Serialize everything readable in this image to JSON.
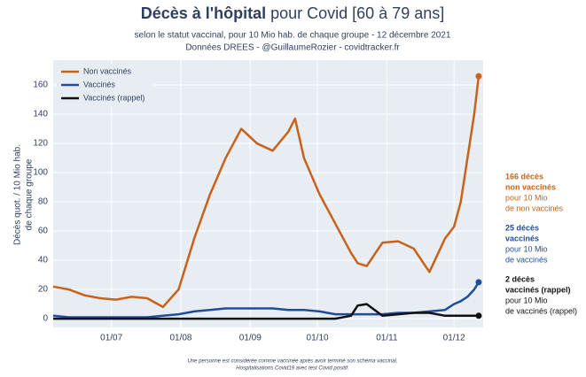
{
  "chart_data": {
    "type": "line",
    "title_bold": "Décès à l'hôpital",
    "title_rest": "pour Covid [60 à 79 ans]",
    "subtitle": [
      "selon le statut vaccinal, pour 10 Mio hab. de chaque groupe - 12 décembre 2021",
      "Données DREES - @GuillaumeRozier - covidtracker.fr"
    ],
    "y_label": [
      "Décès quot. / 10 Mio hab.",
      "de chaque groupe"
    ],
    "x": [
      "05/06",
      "12/06",
      "19/06",
      "26/06",
      "03/07",
      "10/07",
      "17/07",
      "24/07",
      "31/07",
      "07/08",
      "14/08",
      "21/08",
      "28/08",
      "04/09",
      "11/09",
      "18/09",
      "21/09",
      "25/09",
      "02/10",
      "09/10",
      "16/10",
      "19/10",
      "23/10",
      "30/10",
      "06/11",
      "13/11",
      "20/11",
      "27/11",
      "01/12",
      "04/12",
      "07/12",
      "10/12",
      "12/12"
    ],
    "series": [
      {
        "name": "Non vaccinés",
        "color": "#c8621a",
        "values": [
          22,
          20,
          16,
          14,
          13,
          15,
          14,
          8,
          20,
          55,
          85,
          110,
          130,
          120,
          115,
          128,
          137,
          110,
          85,
          65,
          45,
          38,
          36,
          52,
          53,
          48,
          32,
          55,
          63,
          80,
          110,
          140,
          166
        ]
      },
      {
        "name": "Vaccinés",
        "color": "#1f4e99",
        "values": [
          2,
          1,
          1,
          1,
          1,
          1,
          1,
          2,
          3,
          5,
          6,
          7,
          7,
          7,
          7,
          6,
          6,
          6,
          5,
          3,
          3,
          3,
          3,
          3,
          4,
          4,
          5,
          6,
          10,
          12,
          15,
          20,
          25
        ]
      },
      {
        "name": "Vaccinés (rappel)",
        "color": "#111111",
        "values": [
          0,
          0,
          0,
          0,
          0,
          0,
          0,
          0,
          0,
          0,
          0,
          0,
          0,
          0,
          0,
          0,
          0,
          0,
          0,
          0,
          2,
          9,
          10,
          2,
          3,
          4,
          4,
          2,
          2,
          2,
          2,
          2,
          2
        ]
      }
    ],
    "xlim": [
      "05/06",
      "14/12"
    ],
    "xticks": [
      "01/07",
      "01/08",
      "01/09",
      "01/10",
      "01/11",
      "01/12"
    ],
    "ylim": [
      -6,
      177
    ],
    "yticks": [
      0,
      20,
      40,
      60,
      80,
      100,
      120,
      140,
      160
    ],
    "grid": true,
    "legend": "top-left",
    "annotations": [
      {
        "color": "#c8621a",
        "bold": [
          "166 décès",
          "non vaccinés"
        ],
        "lines": [
          "pour 10 Mio",
          "de non vaccinés"
        ]
      },
      {
        "color": "#1f4e99",
        "bold": [
          "25 décès",
          "vaccinés"
        ],
        "lines": [
          "pour 10 Mio",
          "de vaccinés"
        ]
      },
      {
        "color": "#111111",
        "bold": [
          "2 décès",
          "vaccinés (rappel)"
        ],
        "lines": [
          "pour 10 Mio",
          "de vaccinés (rappel)"
        ]
      }
    ],
    "footnote": [
      "Une personne est considérée comme vaccinée après avoir terminé son schéma vaccinal.",
      "Hospitalisations Covid19 avec test Covid positif."
    ]
  }
}
